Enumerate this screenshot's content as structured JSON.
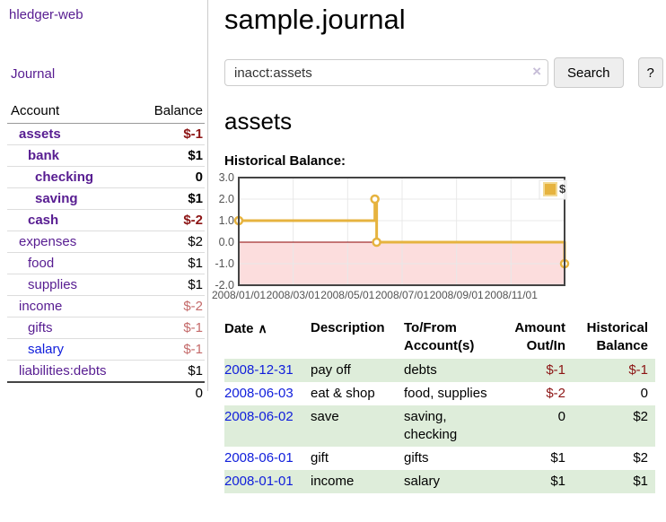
{
  "app": {
    "title": "hledger-web",
    "nav_journal": "Journal"
  },
  "sidebar": {
    "header": {
      "account": "Account",
      "balance": "Balance"
    },
    "accounts": [
      {
        "name": "assets",
        "balance": "$-1"
      },
      {
        "name": "bank",
        "balance": "$1"
      },
      {
        "name": "checking",
        "balance": "0"
      },
      {
        "name": "saving",
        "balance": "$1"
      },
      {
        "name": "cash",
        "balance": "$-2"
      },
      {
        "name": "expenses",
        "balance": "$2"
      },
      {
        "name": "food",
        "balance": "$1"
      },
      {
        "name": "supplies",
        "balance": "$1"
      },
      {
        "name": "income",
        "balance": "$-2"
      },
      {
        "name": "gifts",
        "balance": "$-1"
      },
      {
        "name": "salary",
        "balance": "$-1"
      },
      {
        "name": "liabilities:debts",
        "balance": "$1"
      }
    ],
    "total": "0"
  },
  "main": {
    "title": "sample.journal",
    "search": {
      "value": "inacct:assets",
      "clear_icon": "×",
      "button": "Search",
      "help_button": "?"
    },
    "account_heading": "assets",
    "chart_label": "Historical Balance:"
  },
  "chart_data": {
    "type": "line",
    "step": true,
    "title": "Historical Balance",
    "xlabel": "",
    "ylabel": "",
    "ylim": [
      -2,
      3
    ],
    "grid": true,
    "legend_position": "top-right",
    "series": [
      {
        "name": "$",
        "color": "#e6b33f",
        "points": [
          [
            "2008-01-01",
            1
          ],
          [
            "2008-06-01",
            2
          ],
          [
            "2008-06-03",
            0
          ],
          [
            "2008-12-31",
            -1
          ]
        ]
      }
    ],
    "x_tick_labels": [
      "2008/01/01",
      "2008/03/01",
      "2008/05/01",
      "2008/07/01",
      "2008/09/01",
      "2008/11/01"
    ],
    "y_tick_labels": [
      "3.0",
      "2.0",
      "1.0",
      "0.0",
      "-1.0",
      "-2.0"
    ],
    "below_zero_fill": "#fcdddd",
    "zero_line_color": "#8b0000"
  },
  "table": {
    "sort_icon": "∧",
    "headers": [
      "Date",
      "Description",
      "To/From Account(s)",
      "Amount Out/In",
      "Historical Balance"
    ],
    "rows": [
      {
        "date": "2008-12-31",
        "description": "pay off",
        "accounts": "debts",
        "amount": "$-1",
        "balance": "$-1"
      },
      {
        "date": "2008-06-03",
        "description": "eat & shop",
        "accounts": "food, supplies",
        "amount": "$-2",
        "balance": "0"
      },
      {
        "date": "2008-06-02",
        "description": "save",
        "accounts": "saving, checking",
        "amount": "0",
        "balance": "$2"
      },
      {
        "date": "2008-06-01",
        "description": "gift",
        "accounts": "gifts",
        "amount": "$1",
        "balance": "$2"
      },
      {
        "date": "2008-01-01",
        "description": "income",
        "accounts": "salary",
        "amount": "$1",
        "balance": "$1"
      }
    ]
  }
}
